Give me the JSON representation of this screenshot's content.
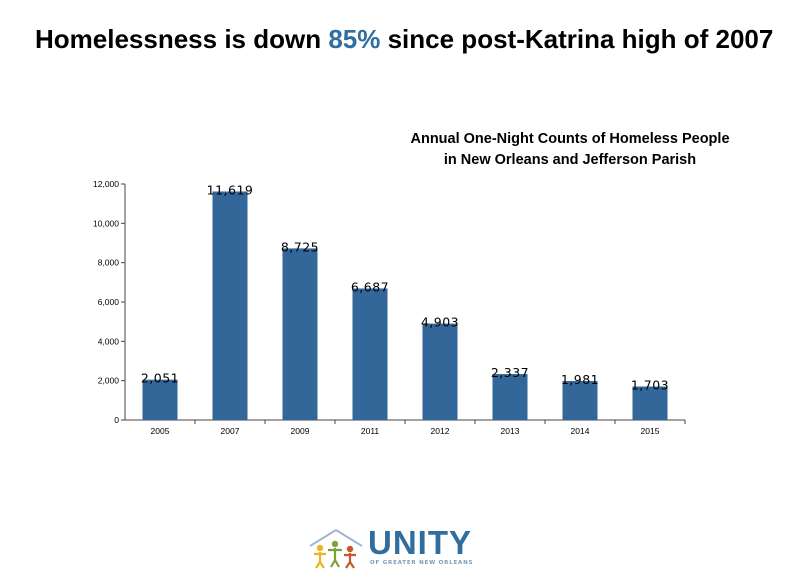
{
  "headline": {
    "before": "Homelessness is down ",
    "highlight": "85%",
    "after": " since post-Katrina high of 2007"
  },
  "chart_title": {
    "line1": "Annual One-Night Counts of Homeless People",
    "line2": "in New Orleans and Jefferson Parish"
  },
  "chart_data": {
    "type": "bar",
    "categories": [
      "2005",
      "2007",
      "2009",
      "2011",
      "2012",
      "2013",
      "2014",
      "2015"
    ],
    "values": [
      2051,
      11619,
      8725,
      6687,
      4903,
      2337,
      1981,
      1703
    ],
    "value_labels": [
      "2,051",
      "11,619",
      "8,725",
      "6,687",
      "4,903",
      "2,337",
      "1,981",
      "1,703"
    ],
    "y_ticks": [
      0,
      2000,
      4000,
      6000,
      8000,
      10000,
      12000
    ],
    "y_tick_labels": [
      "0",
      "2,000",
      "4,000",
      "6,000",
      "8,000",
      "10,000",
      "12,000"
    ],
    "ylim": [
      0,
      12000
    ],
    "title": "Annual One-Night Counts of Homeless People in New Orleans and Jefferson Parish",
    "bar_color": "#336699",
    "grid": false,
    "legend": false
  },
  "logo": {
    "word": "UNITY",
    "subtitle": "OF GREATER NEW ORLEANS"
  },
  "colors": {
    "accent": "#2f6e9e",
    "bar": "#336699"
  }
}
